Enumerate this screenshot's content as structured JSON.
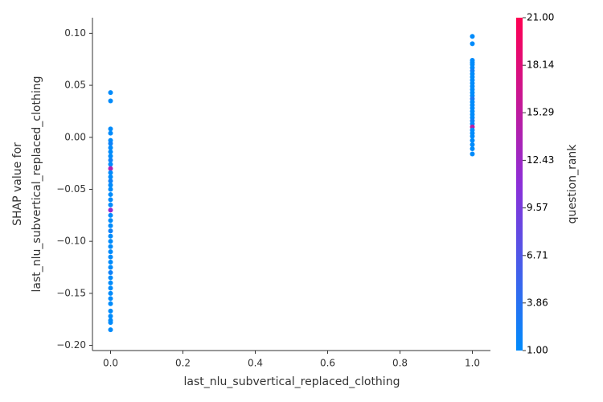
{
  "chart_data": {
    "type": "scatter",
    "xlabel": "last_nlu_subvertical_replaced_clothing",
    "ylabel": [
      "SHAP value for",
      "last_nlu_subvertical_replaced_clothing"
    ],
    "colorbar_label": "question_rank",
    "xlim": [
      -0.05,
      1.05
    ],
    "xticks": [
      {
        "value": 0,
        "label": "0.0"
      },
      0.2,
      0.4,
      0.6,
      0.8,
      {
        "value": 1,
        "label": "1.0"
      }
    ],
    "ylim": [
      -0.205,
      0.115
    ],
    "yticks": [
      {
        "value": -0.2,
        "label": "−0.20"
      },
      {
        "value": -0.15,
        "label": "−0.15"
      },
      {
        "value": -0.1,
        "label": "−0.10"
      },
      {
        "value": -0.05,
        "label": "−0.05"
      },
      {
        "value": 0,
        "label": "0.00"
      },
      0.05,
      {
        "value": 0.1,
        "label": "0.10"
      }
    ],
    "clim": [
      1,
      21
    ],
    "cticks": [
      {
        "value": 1,
        "label": "1.00"
      },
      3.86,
      6.71,
      9.57,
      12.43,
      15.29,
      18.14,
      {
        "value": 21,
        "label": "21.00"
      }
    ],
    "cmap": [
      "#008bfb",
      "#8c2fd8",
      "#ff0052"
    ],
    "x": [
      0,
      0,
      0,
      0,
      0,
      0,
      0,
      0,
      0,
      0,
      0,
      0,
      0,
      0,
      0,
      0,
      0,
      0,
      0,
      0,
      0,
      0,
      0,
      0,
      0,
      0,
      0,
      0,
      0,
      0,
      0,
      0,
      0,
      0,
      0,
      0,
      0,
      0,
      0,
      0,
      0,
      0,
      0,
      0,
      1,
      1,
      1,
      1,
      1,
      1,
      1,
      1,
      1,
      1,
      1,
      1,
      1,
      1,
      1,
      1,
      1,
      1,
      1,
      1,
      1,
      1,
      1,
      1,
      1,
      1,
      1,
      1,
      1,
      1,
      1,
      1
    ],
    "values": [
      0.043,
      0.035,
      0.008,
      0.004,
      -0.003,
      -0.006,
      -0.01,
      -0.014,
      -0.018,
      -0.022,
      -0.026,
      -0.03,
      -0.034,
      -0.038,
      -0.042,
      -0.046,
      -0.05,
      -0.055,
      -0.06,
      -0.065,
      -0.07,
      -0.075,
      -0.08,
      -0.085,
      -0.09,
      -0.095,
      -0.1,
      -0.105,
      -0.11,
      -0.115,
      -0.12,
      -0.125,
      -0.13,
      -0.135,
      -0.14,
      -0.145,
      -0.15,
      -0.155,
      -0.16,
      -0.167,
      -0.172,
      -0.176,
      -0.178,
      -0.185,
      0.097,
      0.09,
      0.074,
      0.072,
      0.07,
      0.067,
      0.064,
      0.061,
      0.058,
      0.055,
      0.052,
      0.049,
      0.046,
      0.043,
      0.04,
      0.037,
      0.034,
      0.031,
      0.028,
      0.025,
      0.022,
      0.019,
      0.016,
      0.013,
      0.01,
      0.007,
      0.004,
      0.001,
      -0.003,
      -0.007,
      -0.011,
      -0.016
    ],
    "color_values": [
      1,
      1,
      1,
      1,
      1,
      2,
      1,
      1,
      1,
      2,
      1,
      14,
      1,
      1,
      2,
      1,
      1,
      1,
      1,
      1,
      12,
      1,
      1,
      1,
      2,
      1,
      1,
      1,
      1,
      1,
      1,
      1,
      2,
      1,
      1,
      1,
      1,
      1,
      1,
      1,
      1,
      1,
      1,
      1,
      1,
      1,
      1,
      1,
      1,
      1,
      2,
      1,
      1,
      1,
      1,
      1,
      1,
      1,
      1,
      3,
      1,
      1,
      1,
      1,
      1,
      1,
      2,
      1,
      15,
      1,
      1,
      1,
      1,
      1,
      1,
      1
    ]
  }
}
